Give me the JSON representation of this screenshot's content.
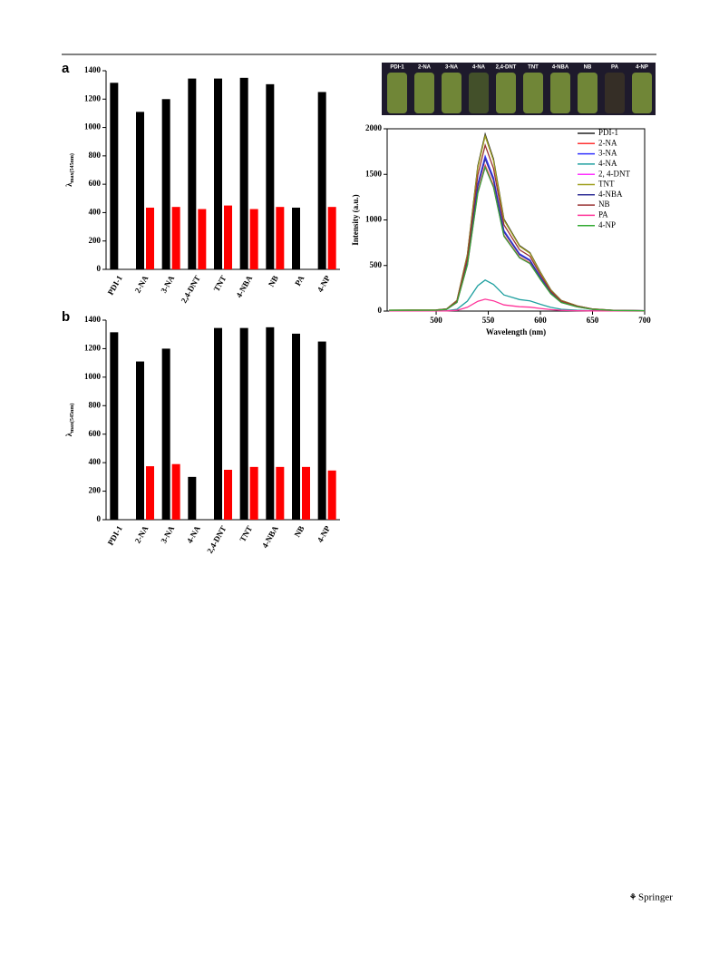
{
  "publisher": "Springer",
  "photo_labels": [
    "PDI-1",
    "2-NA",
    "3-NA",
    "4-NA",
    "2,4-DNT",
    "TNT",
    "4-NBA",
    "NB",
    "PA",
    "4-NP"
  ],
  "chart_data": [
    {
      "type": "bar",
      "panel_label": "a",
      "y_label": "λ",
      "y_label_sub": "max(545nm)",
      "categories": [
        "PDI-1",
        "2-NA",
        "3-NA",
        "2,4-DNT",
        "TNT",
        "4-NBA",
        "NB",
        "PA",
        "4-NP"
      ],
      "series": [
        {
          "color": "#000000",
          "values": [
            1315,
            1110,
            1200,
            1345,
            1345,
            1350,
            1305,
            435,
            1250
          ]
        },
        {
          "color": "#ff0000",
          "values": [
            null,
            435,
            440,
            425,
            450,
            425,
            440,
            null,
            440
          ]
        }
      ],
      "ylim": [
        0,
        1400
      ],
      "yticks": [
        0,
        200,
        400,
        600,
        800,
        1000,
        1200,
        1400
      ]
    },
    {
      "type": "bar",
      "panel_label": "b",
      "y_label": "λ",
      "y_label_sub": "max(545nm)",
      "categories": [
        "PDI-1",
        "2-NA",
        "3-NA",
        "4-NA",
        "2,4-DNT",
        "TNT",
        "4-NBA",
        "NB",
        "4-NP"
      ],
      "series": [
        {
          "color": "#000000",
          "values": [
            1315,
            1110,
            1200,
            300,
            1345,
            1345,
            1350,
            1305,
            1250
          ]
        },
        {
          "color": "#ff0000",
          "values": [
            null,
            375,
            390,
            null,
            350,
            370,
            370,
            370,
            345
          ]
        }
      ],
      "ylim": [
        0,
        1400
      ],
      "yticks": [
        0,
        200,
        400,
        600,
        800,
        1000,
        1200,
        1400
      ]
    },
    {
      "type": "line",
      "x_label": "Wavelength (nm)",
      "y_label": "Intensity (a.u.)",
      "x": [
        455,
        500,
        510,
        520,
        530,
        540,
        547,
        555,
        565,
        580,
        590,
        600,
        610,
        620,
        635,
        650,
        670,
        700
      ],
      "series": [
        {
          "name": "PDI-1",
          "color": "#222222",
          "values": [
            10,
            12,
            23,
            116,
            621,
            1591,
            1940,
            1668,
            1009,
            718,
            640,
            427,
            233,
            116,
            58,
            23,
            8,
            4
          ]
        },
        {
          "name": "2-NA",
          "color": "#ff3333",
          "values": [
            8,
            10,
            19,
            96,
            512,
            1312,
            1600,
            1376,
            832,
            592,
            528,
            352,
            192,
            96,
            48,
            19,
            6,
            3
          ]
        },
        {
          "name": "3-NA",
          "color": "#3333ff",
          "values": [
            9,
            10,
            20,
            102,
            544,
            1394,
            1700,
            1462,
            884,
            629,
            561,
            374,
            204,
            102,
            51,
            20,
            7,
            3
          ]
        },
        {
          "name": "4-NA",
          "color": "#20a0a0",
          "values": [
            2,
            2,
            4,
            20,
            109,
            279,
            340,
            292,
            177,
            126,
            112,
            75,
            41,
            20,
            10,
            4,
            1,
            1
          ]
        },
        {
          "name": "2, 4-DNT",
          "color": "#ff33ff",
          "values": [
            8,
            9,
            19,
            95,
            506,
            1296,
            1580,
            1359,
            822,
            585,
            521,
            348,
            190,
            95,
            47,
            19,
            6,
            3
          ]
        },
        {
          "name": "TNT",
          "color": "#a0a020",
          "values": [
            10,
            12,
            23,
            115,
            614,
            1574,
            1920,
            1651,
            998,
            710,
            634,
            422,
            230,
            115,
            58,
            23,
            8,
            4
          ]
        },
        {
          "name": "4-NBA",
          "color": "#333399",
          "values": [
            8,
            10,
            20,
            100,
            534,
            1369,
            1670,
            1436,
            868,
            618,
            551,
            367,
            200,
            100,
            50,
            20,
            7,
            3
          ]
        },
        {
          "name": "NB",
          "color": "#993333",
          "values": [
            9,
            11,
            22,
            109,
            582,
            1492,
            1820,
            1565,
            946,
            673,
            601,
            400,
            218,
            109,
            55,
            22,
            7,
            4
          ]
        },
        {
          "name": "PA",
          "color": "#ff3399",
          "values": [
            1,
            1,
            2,
            8,
            42,
            107,
            130,
            112,
            68,
            48,
            43,
            29,
            16,
            8,
            4,
            2,
            1,
            0
          ]
        },
        {
          "name": "4-NP",
          "color": "#33aa33",
          "values": [
            8,
            9,
            19,
            95,
            506,
            1296,
            1580,
            1359,
            822,
            585,
            521,
            348,
            190,
            95,
            47,
            19,
            6,
            3
          ]
        }
      ],
      "xlim": [
        453,
        700
      ],
      "xticks": [
        500,
        550,
        600,
        650,
        700
      ],
      "ylim": [
        0,
        2000
      ],
      "yticks": [
        0,
        500,
        1000,
        1500,
        2000
      ]
    }
  ]
}
